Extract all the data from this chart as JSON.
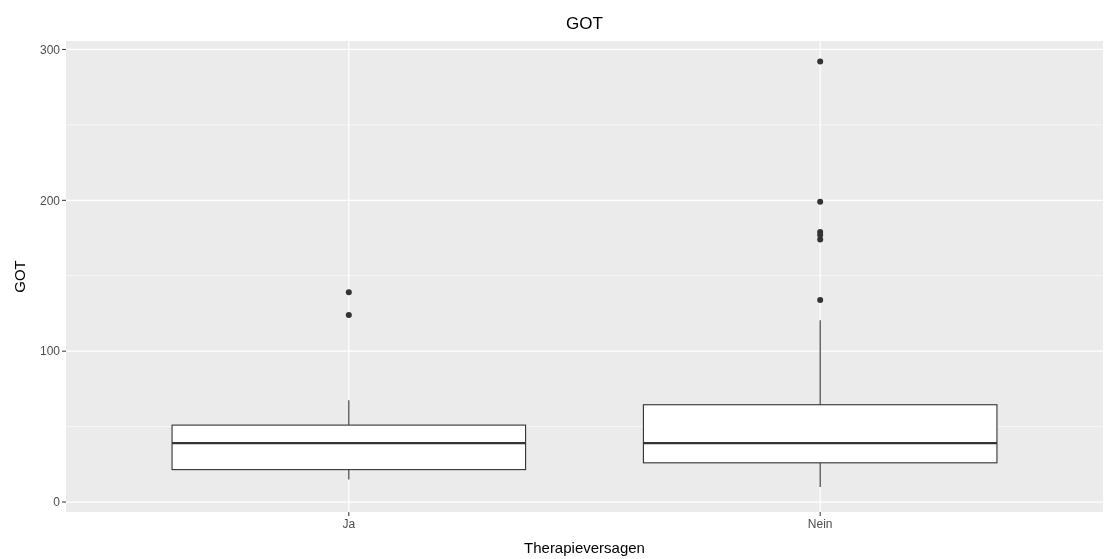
{
  "chart_data": {
    "type": "box",
    "title": "GOT",
    "xlabel": "Therapieversagen",
    "ylabel": "GOT",
    "categories": [
      "Ja",
      "Nein"
    ],
    "boxes": [
      {
        "low": 15,
        "q1": 21.5,
        "median": 39,
        "q3": 51,
        "high": 67.5,
        "outliers": [
          139,
          124
        ]
      },
      {
        "low": 10,
        "q1": 26,
        "median": 39,
        "q3": 64.5,
        "high": 120.5,
        "outliers": [
          292,
          199,
          179,
          177,
          174,
          134
        ]
      }
    ],
    "color": "#ffffff",
    "ylim": [
      -6.6,
      305.6
    ],
    "yticks": [
      0,
      100,
      200,
      300
    ],
    "grid": true
  }
}
